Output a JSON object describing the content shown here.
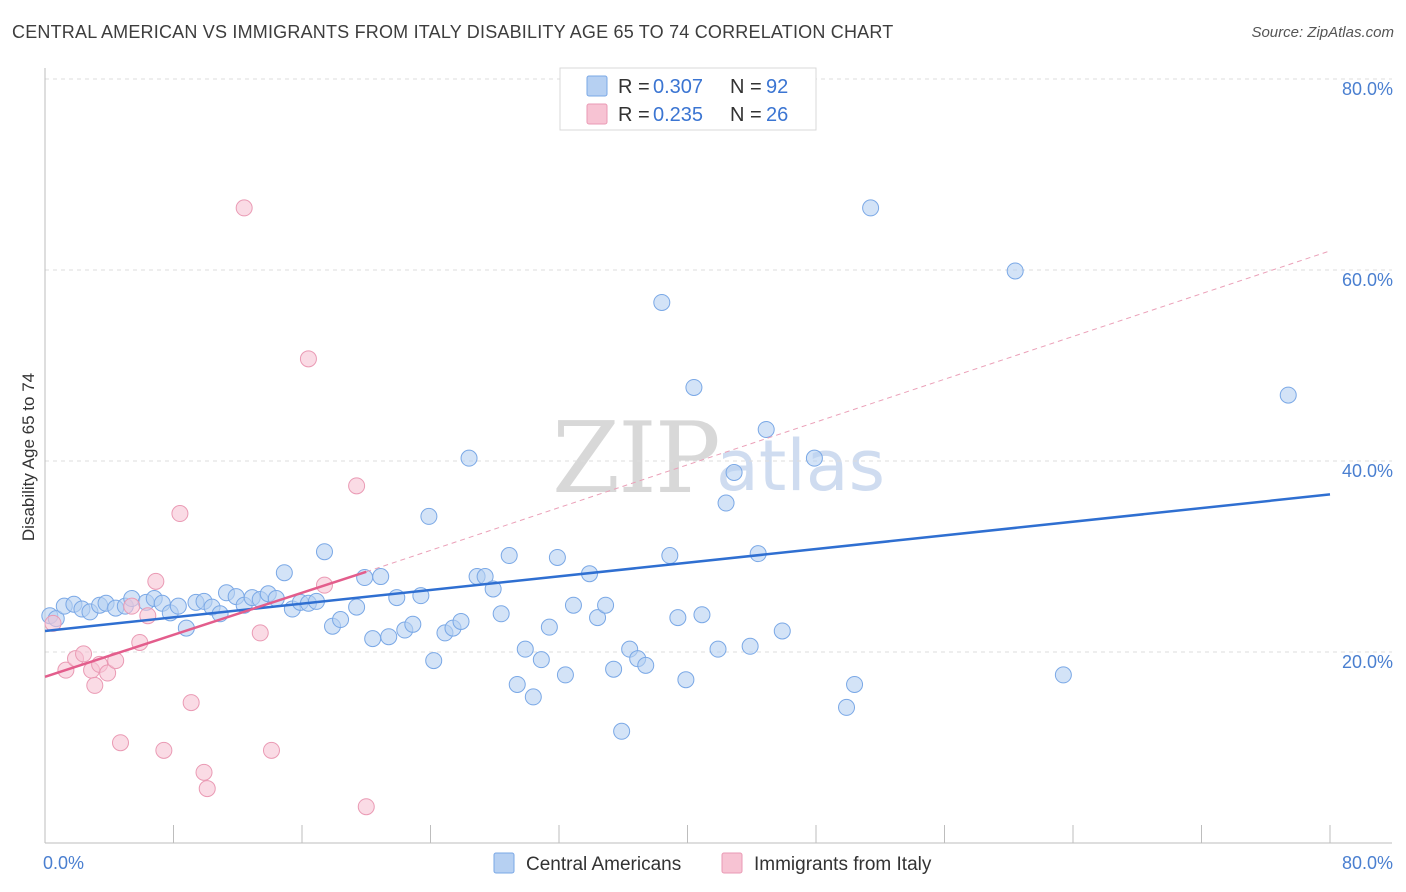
{
  "header": {
    "title": "CENTRAL AMERICAN VS IMMIGRANTS FROM ITALY DISABILITY AGE 65 TO 74 CORRELATION CHART",
    "source": "Source: ZipAtlas.com"
  },
  "watermark": {
    "zip": "ZIP",
    "atlas": "atlas"
  },
  "legend": {
    "rows": [
      {
        "r_label": "R =",
        "r_value": "0.307",
        "n_label": "N =",
        "n_value": "92",
        "color": "#a8c8f0"
      },
      {
        "r_label": "R =",
        "r_value": "0.235",
        "n_label": "N =",
        "n_value": "26",
        "color": "#f5b8cc"
      }
    ]
  },
  "bottom_legend": {
    "items": [
      {
        "label": "Central Americans",
        "color": "#a8c8f0"
      },
      {
        "label": "Immigrants from Italy",
        "color": "#f5b8cc"
      }
    ]
  },
  "chart_data": {
    "type": "scatter",
    "ylabel": "Disability Age 65 to 74",
    "x_tick_labels": [
      "0.0%",
      "80.0%"
    ],
    "y_tick_labels": [
      "20.0%",
      "40.0%",
      "60.0%",
      "80.0%"
    ],
    "xlim": [
      0,
      80
    ],
    "ylim": [
      0,
      80
    ],
    "y_ticks": [
      20,
      40,
      60,
      80
    ],
    "grid": true,
    "legend_position": "top-center",
    "series": [
      {
        "name": "Central Americans",
        "color": "#7aa8e6",
        "fill": "#b6d0f2",
        "trend": {
          "x1": 0,
          "y1": 22.2,
          "x2": 80,
          "y2": 36.5,
          "color": "#2f6fd1",
          "dashed": false
        },
        "points": [
          [
            0.3,
            23.8
          ],
          [
            0.7,
            23.5
          ],
          [
            1.2,
            24.8
          ],
          [
            1.8,
            25.0
          ],
          [
            2.3,
            24.5
          ],
          [
            2.8,
            24.2
          ],
          [
            3.4,
            24.9
          ],
          [
            3.8,
            25.1
          ],
          [
            4.4,
            24.6
          ],
          [
            5.0,
            24.8
          ],
          [
            5.4,
            25.6
          ],
          [
            6.3,
            25.2
          ],
          [
            6.8,
            25.6
          ],
          [
            7.3,
            25.1
          ],
          [
            7.8,
            24.1
          ],
          [
            8.3,
            24.8
          ],
          [
            8.8,
            22.5
          ],
          [
            9.4,
            25.2
          ],
          [
            9.9,
            25.3
          ],
          [
            10.4,
            24.7
          ],
          [
            10.9,
            24.0
          ],
          [
            11.3,
            26.2
          ],
          [
            11.9,
            25.8
          ],
          [
            12.4,
            24.9
          ],
          [
            12.9,
            25.7
          ],
          [
            13.4,
            25.5
          ],
          [
            13.9,
            26.1
          ],
          [
            14.4,
            25.6
          ],
          [
            14.9,
            28.3
          ],
          [
            15.4,
            24.5
          ],
          [
            15.9,
            25.2
          ],
          [
            16.4,
            25.1
          ],
          [
            16.9,
            25.3
          ],
          [
            17.4,
            30.5
          ],
          [
            17.9,
            22.7
          ],
          [
            18.4,
            23.4
          ],
          [
            19.4,
            24.7
          ],
          [
            19.9,
            27.8
          ],
          [
            20.4,
            21.4
          ],
          [
            20.9,
            27.9
          ],
          [
            21.4,
            21.6
          ],
          [
            21.9,
            25.7
          ],
          [
            22.4,
            22.3
          ],
          [
            22.9,
            22.9
          ],
          [
            23.4,
            25.9
          ],
          [
            23.9,
            34.2
          ],
          [
            24.2,
            19.1
          ],
          [
            24.9,
            22.0
          ],
          [
            25.4,
            22.5
          ],
          [
            25.9,
            23.2
          ],
          [
            26.4,
            40.3
          ],
          [
            26.9,
            27.9
          ],
          [
            27.4,
            27.9
          ],
          [
            27.9,
            26.6
          ],
          [
            28.4,
            24.0
          ],
          [
            28.9,
            30.1
          ],
          [
            29.4,
            16.6
          ],
          [
            29.9,
            20.3
          ],
          [
            30.4,
            15.3
          ],
          [
            30.9,
            19.2
          ],
          [
            31.4,
            22.6
          ],
          [
            31.9,
            29.9
          ],
          [
            32.4,
            17.6
          ],
          [
            32.9,
            24.9
          ],
          [
            33.9,
            28.2
          ],
          [
            34.4,
            23.6
          ],
          [
            34.9,
            24.9
          ],
          [
            35.4,
            18.2
          ],
          [
            35.9,
            11.7
          ],
          [
            36.4,
            20.3
          ],
          [
            36.9,
            19.3
          ],
          [
            37.4,
            18.6
          ],
          [
            38.4,
            56.6
          ],
          [
            38.9,
            30.1
          ],
          [
            39.4,
            23.6
          ],
          [
            39.9,
            17.1
          ],
          [
            40.4,
            47.7
          ],
          [
            40.9,
            23.9
          ],
          [
            41.9,
            20.3
          ],
          [
            42.4,
            35.6
          ],
          [
            42.9,
            38.8
          ],
          [
            43.9,
            20.6
          ],
          [
            44.4,
            30.3
          ],
          [
            44.9,
            43.3
          ],
          [
            45.9,
            22.2
          ],
          [
            47.9,
            40.3
          ],
          [
            49.9,
            14.2
          ],
          [
            50.4,
            16.6
          ],
          [
            51.4,
            66.5
          ],
          [
            60.4,
            59.9
          ],
          [
            63.4,
            17.6
          ],
          [
            77.4,
            46.9
          ]
        ]
      },
      {
        "name": "Immigrants from Italy",
        "color": "#ea9ab4",
        "fill": "#f7c3d3",
        "trend": {
          "x1": 0,
          "y1": 17.4,
          "x2": 20,
          "y2": 28.4,
          "color": "#e35d8c",
          "dashed": false
        },
        "trend_extension": {
          "x1": 20,
          "y1": 28.4,
          "x2": 80,
          "y2": 62.0,
          "color": "#eba0b8",
          "dashed": true
        },
        "points": [
          [
            0.5,
            23.0
          ],
          [
            1.3,
            18.1
          ],
          [
            1.9,
            19.3
          ],
          [
            2.4,
            19.8
          ],
          [
            2.9,
            18.1
          ],
          [
            3.1,
            16.5
          ],
          [
            3.4,
            18.7
          ],
          [
            3.9,
            17.8
          ],
          [
            4.4,
            19.1
          ],
          [
            4.7,
            10.5
          ],
          [
            5.4,
            24.8
          ],
          [
            5.9,
            21.0
          ],
          [
            6.4,
            23.8
          ],
          [
            6.9,
            27.4
          ],
          [
            7.4,
            9.7
          ],
          [
            8.4,
            34.5
          ],
          [
            9.1,
            14.7
          ],
          [
            9.9,
            7.4
          ],
          [
            10.1,
            5.7
          ],
          [
            12.4,
            66.5
          ],
          [
            13.4,
            22.0
          ],
          [
            14.1,
            9.7
          ],
          [
            16.4,
            50.7
          ],
          [
            17.4,
            27.0
          ],
          [
            19.4,
            37.4
          ],
          [
            20.0,
            3.8
          ]
        ]
      }
    ]
  }
}
